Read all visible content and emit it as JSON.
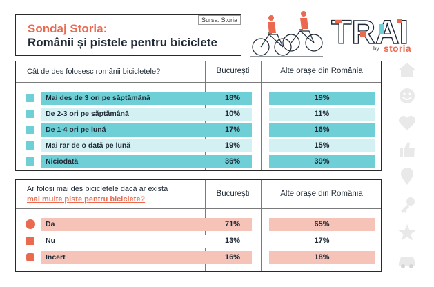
{
  "header": {
    "title_line1": "Sondaj Storia:",
    "title_line2": "Românii și pistele pentru biciclete",
    "source": "Sursa: Storia"
  },
  "logo": {
    "word": "TRAI",
    "by": "by",
    "brand": "storia"
  },
  "colors": {
    "teal": "#6fcfd6",
    "teal_light": "#d3f0f2",
    "salmon": "#f6c3b8",
    "accent": "#ea6a50",
    "dark": "#1f2a36"
  },
  "table1": {
    "question": "Cât de des folosesc românii bicicletele?",
    "col1": "București",
    "col2": "Alte orașe din România",
    "rows": [
      {
        "label": "Mai des de 3 ori pe săptămână",
        "bucuresti": "18%",
        "alte": "19%"
      },
      {
        "label": "De 2-3 ori pe săptămână",
        "bucuresti": "10%",
        "alte": "11%"
      },
      {
        "label": "De 1-4 ori pe lună",
        "bucuresti": "17%",
        "alte": "16%"
      },
      {
        "label": "Mai rar de o dată pe lună",
        "bucuresti": "19%",
        "alte": "15%"
      },
      {
        "label": "Niciodată",
        "bucuresti": "36%",
        "alte": "39%"
      }
    ]
  },
  "table2": {
    "question_part1": "Ar folosi mai des bicicletele dacă ar exista",
    "question_part2": "mai multe piste pentru biciclete?",
    "col1": "București",
    "col2": "Alte orașe din România",
    "rows": [
      {
        "label": "Da",
        "bucuresti": "71%",
        "alte": "65%"
      },
      {
        "label": "Nu",
        "bucuresti": "13%",
        "alte": "17%"
      },
      {
        "label": "Incert",
        "bucuresti": "16%",
        "alte": "18%"
      }
    ]
  },
  "side_icons": [
    "house-icon",
    "smiley-icon",
    "heart-icon",
    "thumbs-up-icon",
    "map-pin-icon",
    "key-icon",
    "star-icon",
    "car-icon"
  ]
}
